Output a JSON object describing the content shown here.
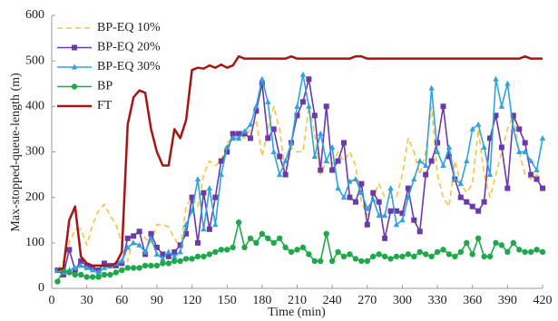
{
  "chart_data": {
    "type": "line",
    "xlabel": "Time (min)",
    "ylabel": "Max-stopped-queue-length (m)",
    "x": [
      5,
      10,
      15,
      20,
      25,
      30,
      35,
      40,
      45,
      50,
      55,
      60,
      65,
      70,
      75,
      80,
      85,
      90,
      95,
      100,
      105,
      110,
      115,
      120,
      125,
      130,
      135,
      140,
      145,
      150,
      155,
      160,
      165,
      170,
      175,
      180,
      185,
      190,
      195,
      200,
      205,
      210,
      215,
      220,
      225,
      230,
      235,
      240,
      245,
      250,
      255,
      260,
      265,
      270,
      275,
      280,
      285,
      290,
      295,
      300,
      305,
      310,
      315,
      320,
      325,
      330,
      335,
      340,
      345,
      350,
      355,
      360,
      365,
      370,
      375,
      380,
      385,
      390,
      395,
      400,
      405,
      410,
      415,
      420
    ],
    "series": [
      {
        "name": "BP-EQ 10%",
        "color": "#f5c242",
        "line_style": "dashed",
        "marker": null,
        "values": [
          40,
          60,
          100,
          130,
          130,
          95,
          140,
          170,
          185,
          160,
          140,
          100,
          60,
          115,
          130,
          110,
          100,
          140,
          140,
          135,
          110,
          90,
          180,
          200,
          180,
          250,
          280,
          270,
          280,
          320,
          330,
          340,
          330,
          350,
          370,
          290,
          350,
          400,
          350,
          250,
          310,
          300,
          300,
          400,
          340,
          250,
          280,
          270,
          300,
          280,
          300,
          270,
          190,
          160,
          200,
          230,
          200,
          200,
          200,
          250,
          330,
          300,
          250,
          300,
          400,
          250,
          200,
          180,
          280,
          230,
          210,
          230,
          350,
          250,
          200,
          250,
          300,
          350,
          380,
          300,
          250,
          240,
          250,
          240
        ]
      },
      {
        "name": "BP-EQ 20%",
        "color": "#6a3aa8",
        "line_style": "solid",
        "marker": "square",
        "values": [
          40,
          30,
          85,
          40,
          60,
          50,
          45,
          40,
          55,
          50,
          50,
          55,
          110,
          115,
          125,
          75,
          120,
          90,
          75,
          70,
          80,
          95,
          120,
          200,
          100,
          210,
          130,
          200,
          280,
          300,
          340,
          340,
          340,
          330,
          390,
          450,
          330,
          350,
          290,
          250,
          320,
          380,
          410,
          460,
          380,
          260,
          400,
          260,
          280,
          320,
          200,
          190,
          230,
          140,
          210,
          190,
          110,
          170,
          170,
          165,
          220,
          150,
          125,
          250,
          280,
          320,
          400,
          290,
          240,
          200,
          190,
          180,
          170,
          190,
          330,
          380,
          310,
          220,
          380,
          350,
          320,
          250,
          240,
          220
        ]
      },
      {
        "name": "BP-EQ 30%",
        "color": "#2fa3e0",
        "line_style": "solid",
        "marker": "triangle",
        "values": [
          40,
          35,
          40,
          45,
          50,
          45,
          40,
          35,
          45,
          50,
          55,
          60,
          90,
          100,
          95,
          80,
          110,
          75,
          65,
          80,
          70,
          80,
          140,
          170,
          240,
          130,
          220,
          140,
          250,
          310,
          330,
          330,
          345,
          360,
          400,
          460,
          410,
          300,
          250,
          280,
          320,
          400,
          470,
          400,
          290,
          340,
          280,
          310,
          220,
          200,
          235,
          240,
          210,
          175,
          195,
          160,
          160,
          220,
          140,
          150,
          200,
          240,
          280,
          270,
          440,
          300,
          270,
          310,
          240,
          230,
          280,
          350,
          360,
          310,
          250,
          460,
          400,
          450,
          350,
          300,
          300,
          280,
          260,
          330
        ]
      },
      {
        "name": "BP",
        "color": "#1fa84a",
        "line_style": "solid",
        "marker": "circle",
        "values": [
          15,
          40,
          35,
          30,
          30,
          25,
          25,
          25,
          30,
          30,
          35,
          40,
          45,
          45,
          45,
          50,
          50,
          50,
          55,
          55,
          60,
          60,
          65,
          65,
          70,
          70,
          75,
          80,
          85,
          85,
          90,
          145,
          90,
          110,
          100,
          120,
          110,
          100,
          110,
          90,
          80,
          85,
          90,
          75,
          60,
          60,
          120,
          60,
          80,
          70,
          75,
          65,
          60,
          60,
          70,
          75,
          70,
          65,
          70,
          70,
          75,
          70,
          80,
          75,
          70,
          80,
          85,
          75,
          70,
          80,
          100,
          75,
          110,
          70,
          70,
          100,
          95,
          80,
          100,
          85,
          80,
          80,
          85,
          80
        ]
      },
      {
        "name": "FT",
        "color": "#a81414",
        "line_style": "solid",
        "marker": null,
        "values": [
          40,
          45,
          150,
          180,
          70,
          55,
          50,
          50,
          50,
          50,
          55,
          80,
          360,
          420,
          435,
          430,
          350,
          300,
          270,
          270,
          350,
          330,
          370,
          480,
          485,
          483,
          490,
          485,
          492,
          485,
          490,
          510,
          505,
          505,
          505,
          505,
          505,
          505,
          505,
          505,
          510,
          505,
          505,
          505,
          505,
          505,
          505,
          505,
          505,
          505,
          505,
          510,
          510,
          505,
          505,
          505,
          505,
          505,
          505,
          505,
          505,
          505,
          505,
          505,
          505,
          505,
          505,
          505,
          505,
          505,
          505,
          505,
          505,
          505,
          505,
          505,
          505,
          505,
          505,
          505,
          510,
          505,
          505,
          505
        ]
      }
    ],
    "xlim": [
      0,
      420
    ],
    "ylim": [
      0,
      600
    ],
    "xticks": [
      0,
      30,
      60,
      90,
      120,
      150,
      180,
      210,
      240,
      270,
      300,
      330,
      360,
      390,
      420
    ],
    "yticks": [
      0,
      100,
      200,
      300,
      400,
      500,
      600
    ],
    "grid": false,
    "legend": "upper left"
  }
}
